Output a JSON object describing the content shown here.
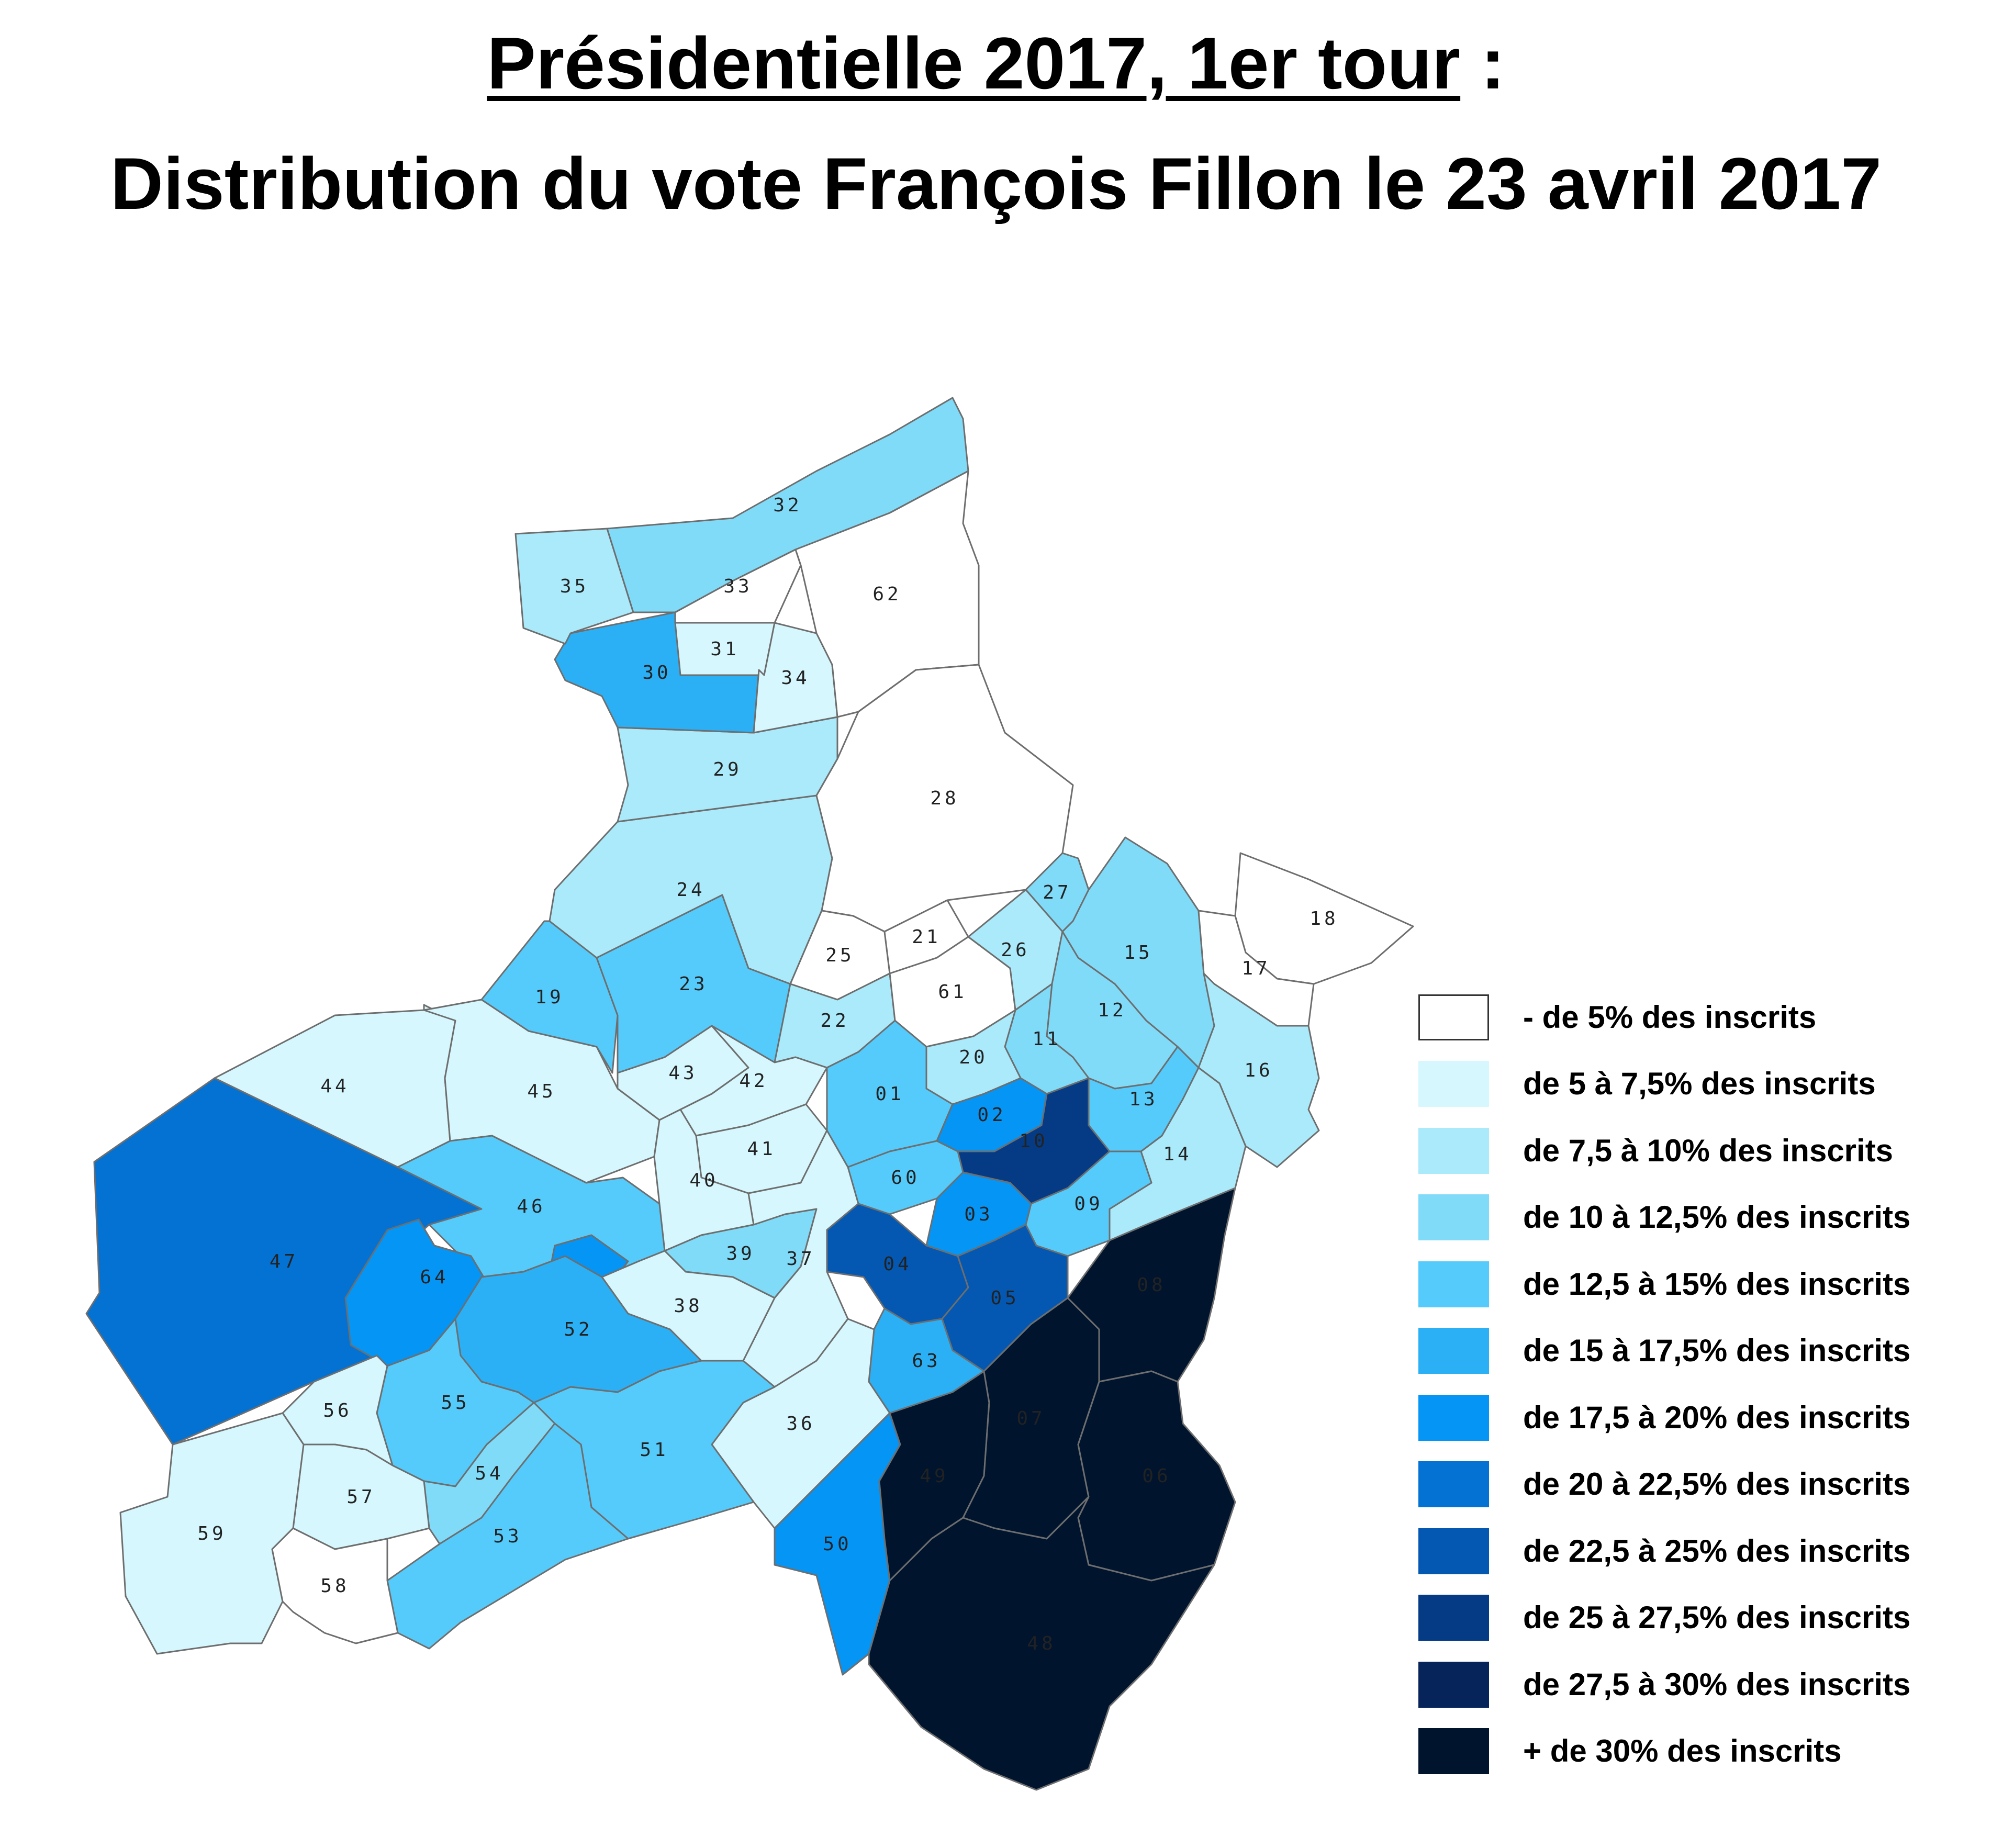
{
  "title": {
    "line1_underlined": "Présidentielle 2017, 1er tour",
    "line1_suffix": " :",
    "line2": "Distribution du vote François Fillon le 23 avril 2017"
  },
  "legend": [
    {
      "label": "- de 5% des inscrits",
      "color": "#ffffff"
    },
    {
      "label": "de 5 à 7,5% des inscrits",
      "color": "#d6f7fd"
    },
    {
      "label": "de 7,5 à 10% des inscrits",
      "color": "#aaeafb"
    },
    {
      "label": "de 10 à 12,5% des inscrits",
      "color": "#80dbf9"
    },
    {
      "label": "de 12,5 à 15% des inscrits",
      "color": "#55cbfb"
    },
    {
      "label": "de 15 à 17,5% des inscrits",
      "color": "#2bb0f5"
    },
    {
      "label": "de 17,5 à 20% des inscrits",
      "color": "#0595f5"
    },
    {
      "label": "de 20 à 22,5% des inscrits",
      "color": "#0372d3"
    },
    {
      "label": "de 22,5 à 25% des inscrits",
      "color": "#0458b2"
    },
    {
      "label": "de 25 à 27,5% des inscrits",
      "color": "#053b85"
    },
    {
      "label": "de 27,5 à 30% des inscrits",
      "color": "#06235a"
    },
    {
      "label": "+ de 30% des inscrits",
      "color": "#00142e"
    }
  ],
  "districts": [
    {
      "id": "01",
      "class": 4
    },
    {
      "id": "02",
      "class": 6
    },
    {
      "id": "03",
      "class": 6
    },
    {
      "id": "04",
      "class": 8
    },
    {
      "id": "05",
      "class": 8
    },
    {
      "id": "06",
      "class": 11
    },
    {
      "id": "07",
      "class": 11
    },
    {
      "id": "08",
      "class": 11
    },
    {
      "id": "09",
      "class": 4
    },
    {
      "id": "10",
      "class": 9
    },
    {
      "id": "11",
      "class": 3
    },
    {
      "id": "12",
      "class": 3
    },
    {
      "id": "13",
      "class": 4
    },
    {
      "id": "14",
      "class": 2
    },
    {
      "id": "15",
      "class": 3
    },
    {
      "id": "16",
      "class": 2
    },
    {
      "id": "17",
      "class": 0
    },
    {
      "id": "18",
      "class": 0
    },
    {
      "id": "19",
      "class": 4
    },
    {
      "id": "20",
      "class": 2
    },
    {
      "id": "21",
      "class": 0
    },
    {
      "id": "22",
      "class": 2
    },
    {
      "id": "23",
      "class": 4
    },
    {
      "id": "24",
      "class": 2
    },
    {
      "id": "25",
      "class": 0
    },
    {
      "id": "26",
      "class": 2
    },
    {
      "id": "27",
      "class": 3
    },
    {
      "id": "28",
      "class": 0
    },
    {
      "id": "29",
      "class": 2
    },
    {
      "id": "30",
      "class": 5
    },
    {
      "id": "31",
      "class": 1
    },
    {
      "id": "32",
      "class": 3
    },
    {
      "id": "33",
      "class": 0
    },
    {
      "id": "34",
      "class": 1
    },
    {
      "id": "35",
      "class": 2
    },
    {
      "id": "36",
      "class": 1
    },
    {
      "id": "37",
      "class": 1
    },
    {
      "id": "38",
      "class": 1
    },
    {
      "id": "39",
      "class": 3
    },
    {
      "id": "40",
      "class": 1
    },
    {
      "id": "41",
      "class": 1
    },
    {
      "id": "42",
      "class": 1
    },
    {
      "id": "43",
      "class": 1
    },
    {
      "id": "44",
      "class": 1
    },
    {
      "id": "45",
      "class": 1
    },
    {
      "id": "46",
      "class": 4
    },
    {
      "id": "47",
      "class": 7
    },
    {
      "id": "48",
      "class": 11
    },
    {
      "id": "49",
      "class": 11
    },
    {
      "id": "50",
      "class": 6
    },
    {
      "id": "51",
      "class": 4
    },
    {
      "id": "52",
      "class": 5
    },
    {
      "id": "53",
      "class": 4
    },
    {
      "id": "54",
      "class": 3
    },
    {
      "id": "55",
      "class": 4
    },
    {
      "id": "56",
      "class": 1
    },
    {
      "id": "57",
      "class": 1
    },
    {
      "id": "58",
      "class": 0
    },
    {
      "id": "59",
      "class": 1
    },
    {
      "id": "60",
      "class": 4
    },
    {
      "id": "61",
      "class": 0
    },
    {
      "id": "62",
      "class": 0
    },
    {
      "id": "63",
      "class": 5
    },
    {
      "id": "64",
      "class": 6
    }
  ]
}
